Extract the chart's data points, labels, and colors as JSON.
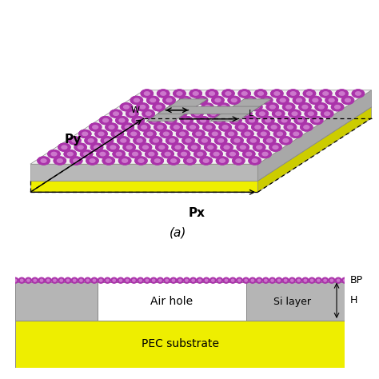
{
  "bg_color": "#ffffff",
  "fig_width": 4.74,
  "fig_height": 4.74,
  "dpi": 100,
  "purple_color": "#aa33aa",
  "purple_light": "#cc77cc",
  "gray_top": "#e0e0e0",
  "gray_front": "#b8b8b8",
  "gray_right": "#a8a8a8",
  "gray_si": "#b5b5b5",
  "yellow_color": "#eeee00",
  "yellow_dark": "#cccc00",
  "white_color": "#ffffff",
  "hshape_color": "#aaaaaa",
  "label_a": "(a)",
  "label_bp": "BP",
  "label_h": "H",
  "label_py": "Py",
  "label_px": "Px",
  "label_w": "W",
  "label_l": "L",
  "label_air": "Air hole",
  "label_si": "Si layer",
  "label_pec": "PEC substrate",
  "persp_ox": 0.08,
  "persp_oy": 0.22,
  "persp_sx": 0.6,
  "persp_sy": 0.0,
  "persp_sz": 0.38,
  "persp_skx": 0.3,
  "persp_sky": 0.3
}
